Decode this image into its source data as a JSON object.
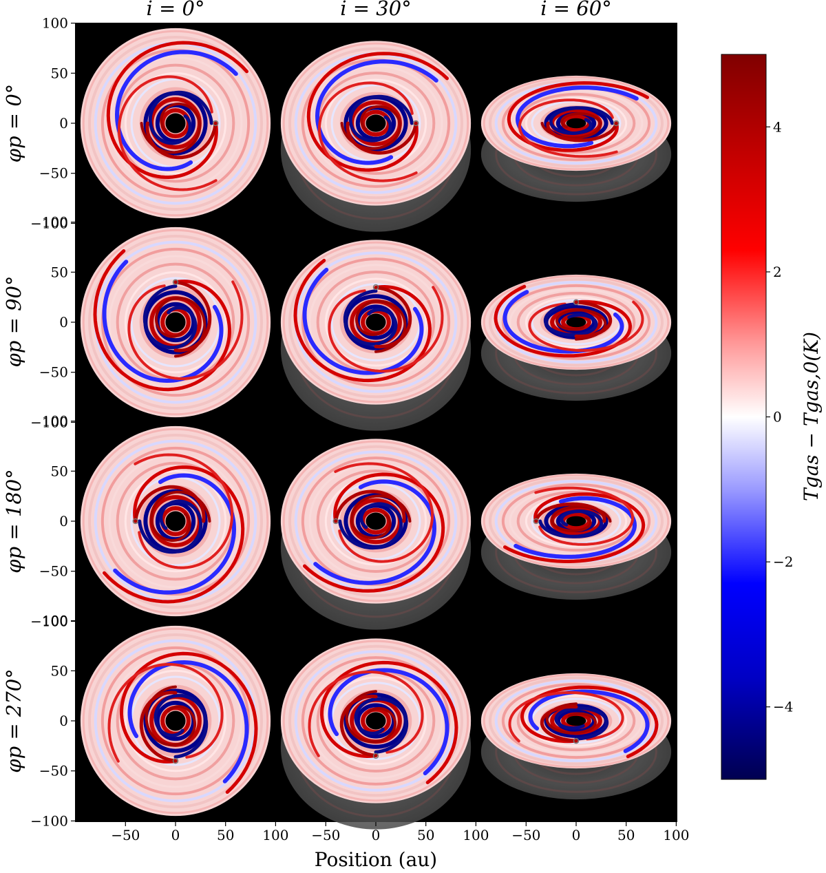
{
  "figure": {
    "columns": [
      "i = 0°",
      "i = 30°",
      "i = 60°"
    ],
    "rows": [
      "φp = 0°",
      "φp = 90°",
      "φp = 180°",
      "φp = 270°"
    ],
    "xlabel": "Position (au)",
    "colorbar_label": "Tgas − Tgas,0(K)",
    "colors": {
      "background": "#000000",
      "positive": "#b00000",
      "negative": "#00008b",
      "zero": "#ffffff"
    }
  },
  "chart_data": {
    "type": "heatmap",
    "quantity": "gas temperature perturbation T_gas − T_gas,0 (K)",
    "x_axis": {
      "label": "Position (au)",
      "range": [
        -100,
        100
      ],
      "ticks": [
        -50,
        0,
        50,
        100
      ]
    },
    "y_axis": {
      "range": [
        -100,
        100
      ],
      "ticks": [
        100,
        50,
        0,
        -50,
        -100
      ]
    },
    "colorbar": {
      "range": [
        -5,
        5
      ],
      "ticks": [
        4,
        2,
        0,
        -2,
        -4
      ],
      "colormap": "seismic",
      "label": "Tgas − Tgas,0(K)"
    },
    "disk_outer_radius_au": 95,
    "inner_hole_radius_au": 10,
    "inclinations_deg": [
      0,
      30,
      60
    ],
    "planet_azimuths_deg": [
      0,
      90,
      180,
      270
    ],
    "panels": [
      {
        "row": 0,
        "col": 0,
        "phi_p": 0,
        "inc": 0,
        "planet": [
          40,
          0
        ]
      },
      {
        "row": 0,
        "col": 1,
        "phi_p": 0,
        "inc": 30,
        "planet": [
          40,
          0
        ]
      },
      {
        "row": 0,
        "col": 2,
        "phi_p": 0,
        "inc": 60,
        "planet": [
          40,
          0
        ]
      },
      {
        "row": 1,
        "col": 0,
        "phi_p": 90,
        "inc": 0,
        "planet": [
          0,
          40
        ]
      },
      {
        "row": 1,
        "col": 1,
        "phi_p": 90,
        "inc": 30,
        "planet": [
          0,
          35
        ]
      },
      {
        "row": 1,
        "col": 2,
        "phi_p": 90,
        "inc": 60,
        "planet": [
          0,
          20
        ]
      },
      {
        "row": 2,
        "col": 0,
        "phi_p": 180,
        "inc": 0,
        "planet": [
          -40,
          0
        ]
      },
      {
        "row": 2,
        "col": 1,
        "phi_p": 180,
        "inc": 30,
        "planet": [
          -40,
          0
        ]
      },
      {
        "row": 2,
        "col": 2,
        "phi_p": 180,
        "inc": 60,
        "planet": [
          -40,
          0
        ]
      },
      {
        "row": 3,
        "col": 0,
        "phi_p": 270,
        "inc": 0,
        "planet": [
          0,
          -40
        ]
      },
      {
        "row": 3,
        "col": 1,
        "phi_p": 270,
        "inc": 30,
        "planet": [
          0,
          -35
        ]
      },
      {
        "row": 3,
        "col": 2,
        "phi_p": 270,
        "inc": 60,
        "planet": [
          0,
          -20
        ]
      }
    ]
  }
}
